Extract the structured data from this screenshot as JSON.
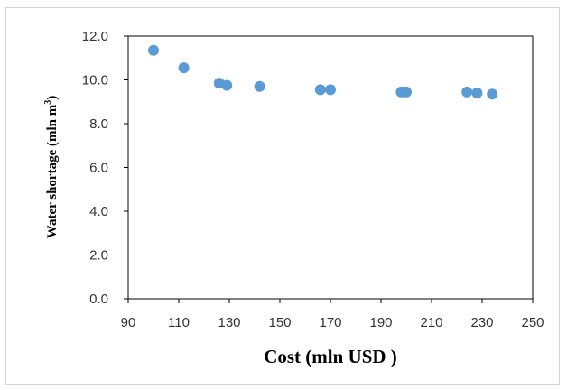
{
  "chart_data": {
    "type": "scatter",
    "title": "",
    "xlabel": "Cost (mln USD )",
    "ylabel": "Water shortage (mln m",
    "ylabel_superscript": "3",
    "ylabel_close": ")",
    "xlim": [
      90,
      250
    ],
    "ylim": [
      0.0,
      12.0
    ],
    "x_ticks": [
      "90",
      "110",
      "130",
      "150",
      "170",
      "190",
      "210",
      "230",
      "250"
    ],
    "y_ticks": [
      "0.0",
      "2.0",
      "4.0",
      "6.0",
      "8.0",
      "10.0",
      "12.0"
    ],
    "grid": false,
    "legend": false,
    "marker_color": "#5b9bd5",
    "points": [
      {
        "x": 100,
        "y": 11.35
      },
      {
        "x": 112,
        "y": 10.55
      },
      {
        "x": 126,
        "y": 9.85
      },
      {
        "x": 129,
        "y": 9.75
      },
      {
        "x": 142,
        "y": 9.7
      },
      {
        "x": 166,
        "y": 9.55
      },
      {
        "x": 170,
        "y": 9.55
      },
      {
        "x": 198,
        "y": 9.45
      },
      {
        "x": 200,
        "y": 9.45
      },
      {
        "x": 224,
        "y": 9.45
      },
      {
        "x": 228,
        "y": 9.4
      },
      {
        "x": 234,
        "y": 9.35
      }
    ]
  }
}
